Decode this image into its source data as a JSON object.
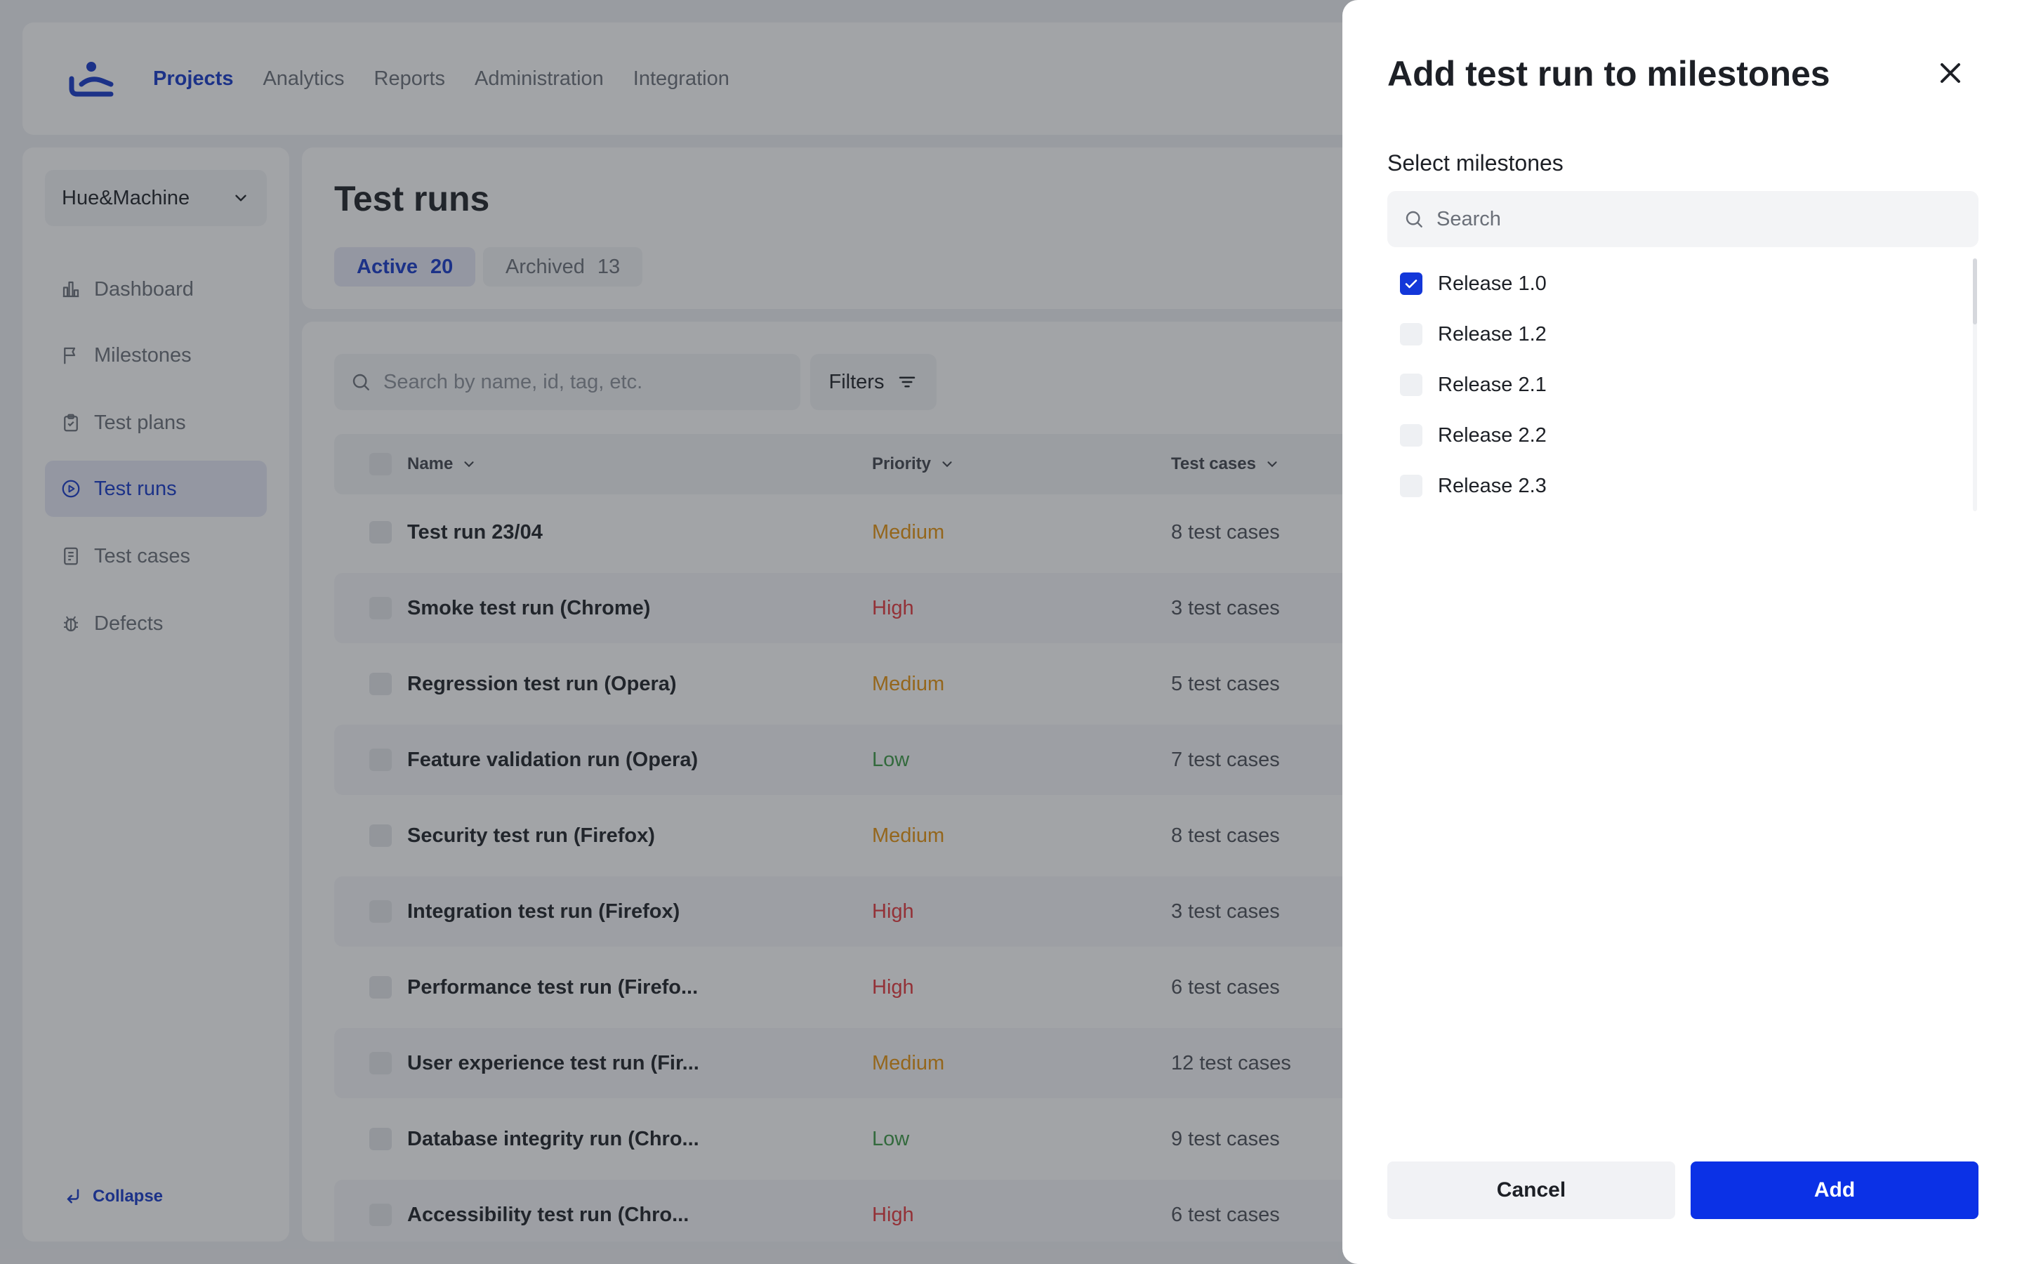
{
  "nav": {
    "logo_icon": "app-logo-icon",
    "items": [
      {
        "label": "Projects",
        "active": true
      },
      {
        "label": "Analytics"
      },
      {
        "label": "Reports"
      },
      {
        "label": "Administration"
      },
      {
        "label": "Integration"
      }
    ]
  },
  "sidebar": {
    "project": "Hue&Machine",
    "items": [
      {
        "label": "Dashboard",
        "icon": "chart-icon"
      },
      {
        "label": "Milestones",
        "icon": "flag-icon"
      },
      {
        "label": "Test plans",
        "icon": "clipboard-icon"
      },
      {
        "label": "Test runs",
        "icon": "play-circle-icon",
        "active": true
      },
      {
        "label": "Test cases",
        "icon": "document-icon"
      },
      {
        "label": "Defects",
        "icon": "bug-icon"
      }
    ],
    "collapse_label": "Collapse"
  },
  "page": {
    "title": "Test runs",
    "tabs": [
      {
        "label": "Active",
        "count": "20",
        "active": true
      },
      {
        "label": "Archived",
        "count": "13"
      }
    ]
  },
  "list": {
    "search_placeholder": "Search by name, id, tag, etc.",
    "filters_label": "Filters",
    "columns": [
      "Name",
      "Priority",
      "Test cases"
    ],
    "rows": [
      {
        "name": "Test run 23/04",
        "priority": "Medium",
        "cases": "8 test cases"
      },
      {
        "name": "Smoke test run (Chrome)",
        "priority": "High",
        "cases": "3 test cases"
      },
      {
        "name": "Regression test run (Opera)",
        "priority": "Medium",
        "cases": "5 test cases"
      },
      {
        "name": "Feature validation run (Opera)",
        "priority": "Low",
        "cases": "7 test cases"
      },
      {
        "name": "Security test run (Firefox)",
        "priority": "Medium",
        "cases": "8 test cases"
      },
      {
        "name": "Integration test run (Firefox)",
        "priority": "High",
        "cases": "3 test cases"
      },
      {
        "name": "Performance test run (Firefo...",
        "priority": "High",
        "cases": "6 test cases"
      },
      {
        "name": "User experience test run (Fir...",
        "priority": "Medium",
        "cases": "12 test cases"
      },
      {
        "name": "Database integrity run (Chro...",
        "priority": "Low",
        "cases": "9 test cases"
      },
      {
        "name": "Accessibility test run (Chro...",
        "priority": "High",
        "cases": "6 test cases"
      }
    ]
  },
  "drawer": {
    "title": "Add test run to milestones",
    "section_label": "Select milestones",
    "search_placeholder": "Search",
    "milestones": [
      {
        "label": "Release 1.0",
        "checked": true
      },
      {
        "label": "Release 1.2",
        "checked": false
      },
      {
        "label": "Release 2.1",
        "checked": false
      },
      {
        "label": "Release 2.2",
        "checked": false
      },
      {
        "label": "Release 2.3",
        "checked": false
      }
    ],
    "cancel_label": "Cancel",
    "add_label": "Add"
  },
  "colors": {
    "accent": "#1538c8",
    "primary_button": "#0b31e6",
    "medium": "#e7930c",
    "high": "#e5363b",
    "low": "#3c9a46"
  }
}
